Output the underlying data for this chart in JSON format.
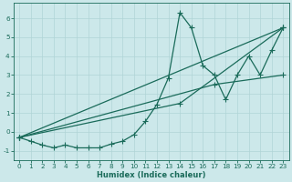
{
  "xlabel": "Humidex (Indice chaleur)",
  "bg_color": "#cce8ea",
  "line_color": "#1a6b5a",
  "grid_color": "#b0d4d6",
  "xlim": [
    -0.5,
    23.5
  ],
  "ylim": [
    -1.5,
    6.8
  ],
  "xticks": [
    0,
    1,
    2,
    3,
    4,
    5,
    6,
    7,
    8,
    9,
    10,
    11,
    12,
    13,
    14,
    15,
    16,
    17,
    18,
    19,
    20,
    21,
    22,
    23
  ],
  "yticks": [
    -1,
    0,
    1,
    2,
    3,
    4,
    5,
    6
  ],
  "series_main": [
    [
      0,
      -0.3
    ],
    [
      1,
      -0.5
    ],
    [
      2,
      -0.7
    ],
    [
      3,
      -0.85
    ],
    [
      4,
      -0.7
    ],
    [
      5,
      -0.85
    ],
    [
      6,
      -0.85
    ],
    [
      7,
      -0.85
    ],
    [
      8,
      -0.65
    ],
    [
      9,
      -0.5
    ],
    [
      10,
      -0.15
    ],
    [
      11,
      0.55
    ],
    [
      12,
      1.45
    ],
    [
      13,
      2.85
    ],
    [
      14,
      6.3
    ],
    [
      15,
      5.5
    ],
    [
      16,
      3.5
    ],
    [
      17,
      3.0
    ],
    [
      18,
      1.7
    ],
    [
      19,
      3.0
    ],
    [
      20,
      4.0
    ],
    [
      21,
      3.0
    ],
    [
      22,
      4.3
    ],
    [
      23,
      5.5
    ]
  ],
  "series_straight1": [
    [
      0,
      -0.3
    ],
    [
      23,
      5.5
    ]
  ],
  "series_straight2": [
    [
      0,
      -0.3
    ],
    [
      14,
      1.5
    ],
    [
      23,
      5.5
    ]
  ],
  "series_straight3": [
    [
      0,
      -0.3
    ],
    [
      17,
      2.5
    ],
    [
      23,
      3.0
    ]
  ]
}
